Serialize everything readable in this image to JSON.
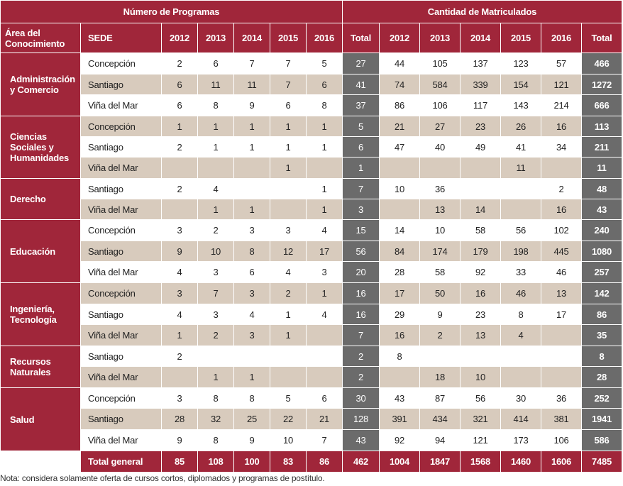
{
  "header": {
    "programas": "Número de Programas",
    "matriculados": "Cantidad de Matriculados",
    "area": "Área del Conocimiento",
    "sede": "SEDE",
    "years": [
      "2012",
      "2013",
      "2014",
      "2015",
      "2016"
    ],
    "total": "Total"
  },
  "rows": [
    {
      "area": "Administración y Comercio",
      "sede": "Concepción",
      "p": [
        "2",
        "6",
        "7",
        "7",
        "5"
      ],
      "pt": "27",
      "m": [
        "44",
        "105",
        "137",
        "123",
        "57"
      ],
      "mt": "466"
    },
    {
      "area": "",
      "sede": "Santiago",
      "p": [
        "6",
        "11",
        "11",
        "7",
        "6"
      ],
      "pt": "41",
      "m": [
        "74",
        "584",
        "339",
        "154",
        "121"
      ],
      "mt": "1272"
    },
    {
      "area": "",
      "sede": "Viña del Mar",
      "p": [
        "6",
        "8",
        "9",
        "6",
        "8"
      ],
      "pt": "37",
      "m": [
        "86",
        "106",
        "117",
        "143",
        "214"
      ],
      "mt": "666"
    },
    {
      "area": "Ciencias Sociales y Humanidades",
      "sede": "Concepción",
      "p": [
        "1",
        "1",
        "1",
        "1",
        "1"
      ],
      "pt": "5",
      "m": [
        "21",
        "27",
        "23",
        "26",
        "16"
      ],
      "mt": "113"
    },
    {
      "area": "",
      "sede": "Santiago",
      "p": [
        "2",
        "1",
        "1",
        "1",
        "1"
      ],
      "pt": "6",
      "m": [
        "47",
        "40",
        "49",
        "41",
        "34"
      ],
      "mt": "211"
    },
    {
      "area": "",
      "sede": "Viña del Mar",
      "p": [
        "",
        "",
        "",
        "1",
        ""
      ],
      "pt": "1",
      "m": [
        "",
        "",
        "",
        "11",
        ""
      ],
      "mt": "11"
    },
    {
      "area": "Derecho",
      "sede": "Santiago",
      "p": [
        "2",
        "4",
        "",
        "",
        "1"
      ],
      "pt": "7",
      "m": [
        "10",
        "36",
        "",
        "",
        "2"
      ],
      "mt": "48"
    },
    {
      "area": "",
      "sede": "Viña del Mar",
      "p": [
        "",
        "1",
        "1",
        "",
        "1"
      ],
      "pt": "3",
      "m": [
        "",
        "13",
        "14",
        "",
        "16"
      ],
      "mt": "43"
    },
    {
      "area": "Educación",
      "sede": "Concepción",
      "p": [
        "3",
        "2",
        "3",
        "3",
        "4"
      ],
      "pt": "15",
      "m": [
        "14",
        "10",
        "58",
        "56",
        "102"
      ],
      "mt": "240"
    },
    {
      "area": "",
      "sede": "Santiago",
      "p": [
        "9",
        "10",
        "8",
        "12",
        "17"
      ],
      "pt": "56",
      "m": [
        "84",
        "174",
        "179",
        "198",
        "445"
      ],
      "mt": "1080"
    },
    {
      "area": "",
      "sede": "Viña del Mar",
      "p": [
        "4",
        "3",
        "6",
        "4",
        "3"
      ],
      "pt": "20",
      "m": [
        "28",
        "58",
        "92",
        "33",
        "46"
      ],
      "mt": "257"
    },
    {
      "area": "Ingeniería, Tecnología",
      "sede": "Concepción",
      "p": [
        "3",
        "7",
        "3",
        "2",
        "1"
      ],
      "pt": "16",
      "m": [
        "17",
        "50",
        "16",
        "46",
        "13"
      ],
      "mt": "142"
    },
    {
      "area": "",
      "sede": "Santiago",
      "p": [
        "4",
        "3",
        "4",
        "1",
        "4"
      ],
      "pt": "16",
      "m": [
        "29",
        "9",
        "23",
        "8",
        "17"
      ],
      "mt": "86"
    },
    {
      "area": "",
      "sede": "Viña del Mar",
      "p": [
        "1",
        "2",
        "3",
        "1",
        ""
      ],
      "pt": "7",
      "m": [
        "16",
        "2",
        "13",
        "4",
        ""
      ],
      "mt": "35"
    },
    {
      "area": "Recursos Naturales",
      "sede": "Santiago",
      "p": [
        "2",
        "",
        "",
        "",
        ""
      ],
      "pt": "2",
      "m": [
        "8",
        "",
        "",
        "",
        ""
      ],
      "mt": "8"
    },
    {
      "area": "",
      "sede": "Viña del Mar",
      "p": [
        "",
        "1",
        "1",
        "",
        ""
      ],
      "pt": "2",
      "m": [
        "",
        "18",
        "10",
        "",
        ""
      ],
      "mt": "28"
    },
    {
      "area": "Salud",
      "sede": "Concepción",
      "p": [
        "3",
        "8",
        "8",
        "5",
        "6"
      ],
      "pt": "30",
      "m": [
        "43",
        "87",
        "56",
        "30",
        "36"
      ],
      "mt": "252"
    },
    {
      "area": "",
      "sede": "Santiago",
      "p": [
        "28",
        "32",
        "25",
        "22",
        "21"
      ],
      "pt": "128",
      "m": [
        "391",
        "434",
        "321",
        "414",
        "381"
      ],
      "mt": "1941"
    },
    {
      "area": "",
      "sede": "Viña del Mar",
      "p": [
        "9",
        "8",
        "9",
        "10",
        "7"
      ],
      "pt": "43",
      "m": [
        "92",
        "94",
        "121",
        "173",
        "106"
      ],
      "mt": "586"
    }
  ],
  "total_general": {
    "label": "Total general",
    "p": [
      "85",
      "108",
      "100",
      "83",
      "86"
    ],
    "pt": "462",
    "m": [
      "1004",
      "1847",
      "1568",
      "1460",
      "1606"
    ],
    "mt": "7485"
  },
  "note": "Nota: considera solamente oferta de cursos cortos, diplomados y programas de postítulo.",
  "colors": {
    "header": "#a0263a",
    "total_col": "#6b6b6b",
    "band": "#d8cbbd"
  }
}
